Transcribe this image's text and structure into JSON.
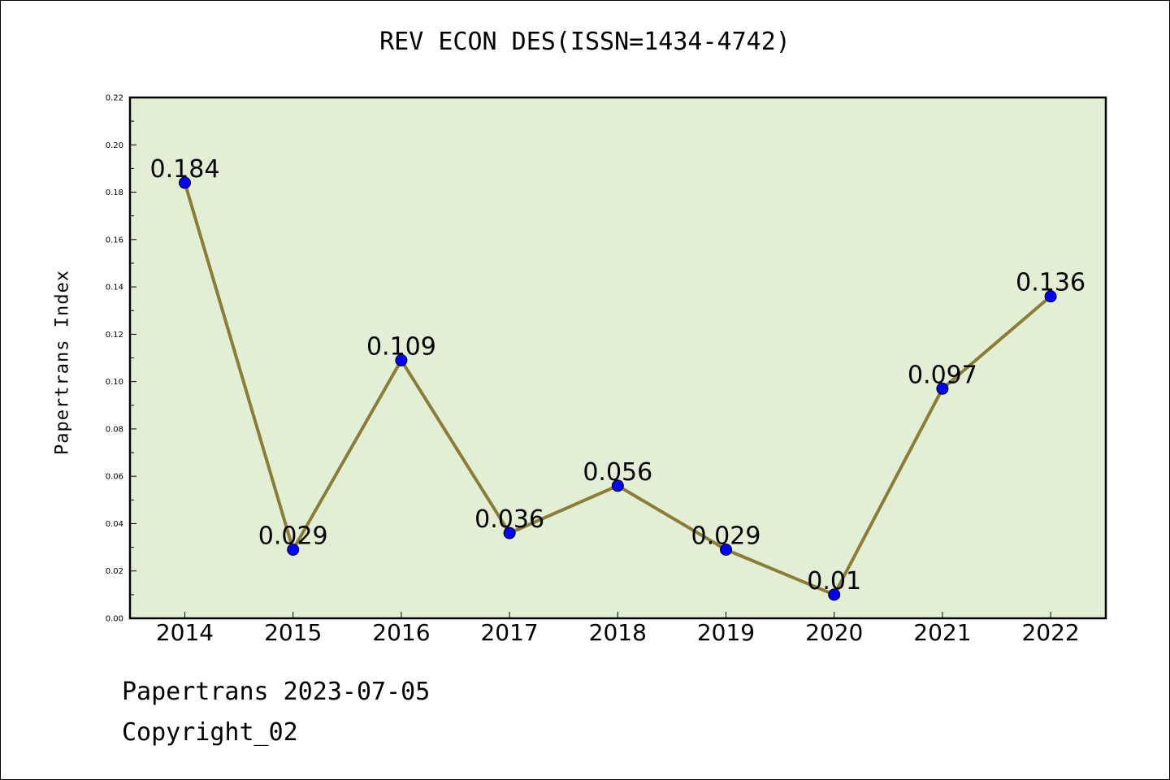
{
  "title": "REV ECON DES(ISSN=1434-4742)",
  "footer": {
    "line1": "Papertrans 2023-07-05",
    "line2": "Copyright_02"
  },
  "chart_data": {
    "type": "line",
    "title": "REV ECON DES(ISSN=1434-4742)",
    "xlabel": "",
    "ylabel": "Papertrans Index",
    "categories": [
      "2014",
      "2015",
      "2016",
      "2017",
      "2018",
      "2019",
      "2020",
      "2021",
      "2022"
    ],
    "values": [
      0.184,
      0.029,
      0.109,
      0.036,
      0.056,
      0.029,
      0.01,
      0.097,
      0.136
    ],
    "data_labels": [
      "0.184",
      "0.029",
      "0.109",
      "0.036",
      "0.056",
      "0.029",
      "0.01",
      "0.097",
      "0.136"
    ],
    "ylim": [
      0,
      0.22
    ],
    "yticks": [
      "0.00",
      "0.02",
      "0.04",
      "0.06",
      "0.08",
      "0.10",
      "0.12",
      "0.14",
      "0.16",
      "0.18",
      "0.20",
      "0.22"
    ],
    "grid": false,
    "colors": {
      "plot_background": "#e2efd5",
      "line": "#8b7d36",
      "marker": "#0000ff"
    }
  }
}
